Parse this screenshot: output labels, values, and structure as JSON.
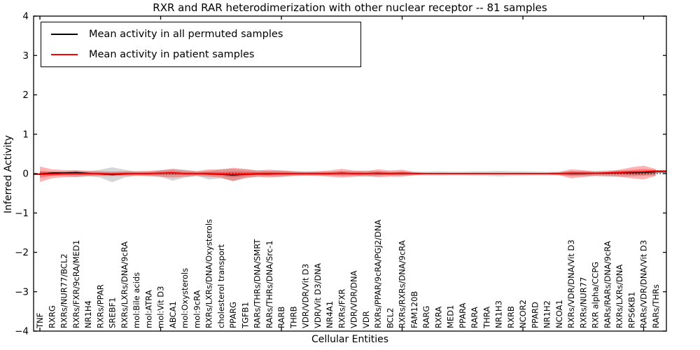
{
  "figure": {
    "title": "RXR and RAR heterodimerization with other nuclear receptor -- 81 samples",
    "xlabel": "Cellular Entities",
    "ylabel": "Inferred Activity"
  },
  "legend": {
    "entries": [
      {
        "label": "Mean activity in all permuted samples",
        "color": "#000000"
      },
      {
        "label": "Mean activity in patient samples",
        "color": "#ff0000"
      }
    ]
  },
  "chart_data": {
    "type": "line",
    "title": "RXR and RAR heterodimerization with other nuclear receptor -- 81 samples",
    "xlabel": "Cellular Entities",
    "ylabel": "Inferred Activity",
    "ylim": [
      -4,
      4
    ],
    "ytick_labels": [
      "4",
      "3",
      "2",
      "1",
      "0",
      "−1",
      "−2",
      "−3",
      "−4"
    ],
    "ytick_values": [
      4,
      3,
      2,
      1,
      0,
      -1,
      -2,
      -3,
      -4
    ],
    "xtick_indices": [
      0,
      10,
      20,
      30,
      40,
      50
    ],
    "grid": false,
    "zero_line": true,
    "legend_position": "upper left",
    "categories": [
      "TNF",
      "RXRG",
      "RXRs/NUR77/BCL2",
      "RXRs/FXR/9cRA/MED1",
      "NR1H4",
      "RXRs/PPAR",
      "SREBF1",
      "RXRs/LXRs/DNA/9cRA",
      "mol:Bile acids",
      "mol:ATRA",
      "mol:Vit D3",
      "ABCA1",
      "mol:Oxysterols",
      "mol:9cRA",
      "RXRs/LXRs/DNA/Oxysterols",
      "cholesterol transport",
      "PPARG",
      "TGFB1",
      "RARs/THRs/DNA/SMRT",
      "RARs/THRs/DNA/Src-1",
      "RARB",
      "THRB",
      "VDR/VDR/Vit D3",
      "VDR/Vit D3/DNA",
      "NR4A1",
      "RXRs/FXR",
      "VDR/VDR/DNA",
      "VDR",
      "RXRs/PPAR/9cRA/PGJ2/DNA",
      "BCL2",
      "RXRs/RXRs/DNA/9cRA",
      "FAM120B",
      "RARG",
      "RXRA",
      "MED1",
      "PPARA",
      "RARA",
      "THRA",
      "NR1H3",
      "RXRB",
      "NCOR2",
      "PPARD",
      "NR1H2",
      "NCOA1",
      "RXRs/VDR/DNA/Vit D3",
      "RXRs/NUR77",
      "RXR alpha/CCPG",
      "RARs/RARs/DNA/9cRA",
      "RXRs/LXRs/DNA",
      "RPS6KB1",
      "RARs/VDR/DNA/Vit D3",
      "RARs/THRs"
    ],
    "series": [
      {
        "name": "Mean activity in all permuted samples",
        "color": "#000000",
        "values": [
          -0.01,
          0.02,
          0.02,
          0.03,
          0.01,
          -0.01,
          -0.03,
          -0.01,
          0.0,
          0.0,
          0.01,
          0.02,
          0.0,
          0.0,
          -0.01,
          -0.02,
          -0.04,
          -0.02,
          -0.01,
          -0.01,
          0.0,
          0.0,
          0.0,
          0.0,
          0.0,
          0.01,
          0.0,
          0.0,
          0.0,
          0.0,
          0.0,
          0.0,
          0.0,
          0.0,
          0.0,
          0.0,
          0.0,
          0.0,
          0.0,
          0.0,
          0.0,
          0.0,
          0.0,
          0.0,
          0.0,
          0.0,
          0.01,
          0.01,
          0.02,
          0.02,
          0.03,
          0.04
        ]
      },
      {
        "name": "Mean activity in patient samples",
        "color": "#ff0000",
        "values": [
          -0.02,
          -0.01,
          0.0,
          0.0,
          0.0,
          0.0,
          -0.01,
          0.0,
          0.0,
          0.0,
          0.01,
          0.02,
          0.0,
          0.0,
          0.0,
          -0.01,
          -0.02,
          -0.01,
          0.0,
          0.0,
          0.0,
          0.0,
          0.0,
          0.0,
          0.0,
          0.01,
          0.0,
          0.0,
          0.01,
          0.0,
          0.01,
          0.0,
          0.0,
          0.0,
          0.0,
          0.0,
          0.0,
          0.0,
          0.0,
          0.0,
          0.0,
          0.0,
          0.0,
          0.0,
          0.01,
          0.01,
          0.01,
          0.02,
          0.03,
          0.04,
          0.05,
          0.07
        ]
      }
    ],
    "bands": [
      {
        "name": "permuted-samples-std-band",
        "color": "#999999",
        "alpha": 0.4,
        "upper": [
          0.05,
          0.05,
          0.06,
          0.09,
          0.06,
          0.1,
          0.16,
          0.1,
          0.05,
          0.05,
          0.08,
          0.13,
          0.1,
          0.06,
          0.06,
          0.12,
          0.12,
          0.1,
          0.08,
          0.07,
          0.08,
          0.06,
          0.05,
          0.05,
          0.05,
          0.06,
          0.06,
          0.08,
          0.06,
          0.05,
          0.05,
          0.05,
          0.05,
          0.06,
          0.05,
          0.05,
          0.06,
          0.06,
          0.07,
          0.06,
          0.06,
          0.05,
          0.05,
          0.05,
          0.06,
          0.06,
          0.07,
          0.08,
          0.08,
          0.07,
          0.06,
          0.05
        ],
        "lower": [
          -0.05,
          -0.05,
          -0.06,
          -0.09,
          -0.06,
          -0.1,
          -0.22,
          -0.1,
          -0.05,
          -0.05,
          -0.08,
          -0.18,
          -0.1,
          -0.06,
          -0.15,
          -0.12,
          -0.19,
          -0.1,
          -0.08,
          -0.07,
          -0.08,
          -0.06,
          -0.05,
          -0.05,
          -0.05,
          -0.06,
          -0.06,
          -0.08,
          -0.06,
          -0.05,
          -0.05,
          -0.05,
          -0.05,
          -0.06,
          -0.05,
          -0.05,
          -0.06,
          -0.06,
          -0.07,
          -0.06,
          -0.06,
          -0.05,
          -0.05,
          -0.05,
          -0.06,
          -0.06,
          -0.07,
          -0.08,
          -0.08,
          -0.07,
          -0.06,
          -0.05
        ]
      },
      {
        "name": "patient-samples-std-band",
        "color": "#ff0000",
        "alpha": 0.3,
        "upper": [
          0.18,
          0.11,
          0.09,
          0.08,
          0.07,
          0.06,
          0.05,
          0.06,
          0.06,
          0.07,
          0.09,
          0.11,
          0.08,
          0.06,
          0.11,
          0.1,
          0.15,
          0.12,
          0.08,
          0.1,
          0.08,
          0.06,
          0.05,
          0.06,
          0.08,
          0.12,
          0.08,
          0.06,
          0.11,
          0.08,
          0.1,
          0.04,
          0.02,
          0.02,
          0.02,
          0.02,
          0.02,
          0.02,
          0.02,
          0.02,
          0.02,
          0.02,
          0.02,
          0.04,
          0.11,
          0.09,
          0.05,
          0.06,
          0.1,
          0.16,
          0.2,
          0.12
        ],
        "lower": [
          -0.21,
          -0.12,
          -0.09,
          -0.08,
          -0.07,
          -0.06,
          -0.06,
          -0.06,
          -0.06,
          -0.07,
          -0.08,
          -0.1,
          -0.08,
          -0.06,
          -0.08,
          -0.1,
          -0.19,
          -0.12,
          -0.08,
          -0.1,
          -0.08,
          -0.06,
          -0.05,
          -0.06,
          -0.08,
          -0.1,
          -0.08,
          -0.06,
          -0.09,
          -0.08,
          -0.08,
          -0.04,
          -0.02,
          -0.02,
          -0.02,
          -0.02,
          -0.02,
          -0.02,
          -0.02,
          -0.02,
          -0.02,
          -0.02,
          -0.02,
          -0.04,
          -0.12,
          -0.09,
          -0.05,
          -0.06,
          -0.08,
          -0.12,
          -0.15,
          -0.06
        ]
      }
    ]
  }
}
